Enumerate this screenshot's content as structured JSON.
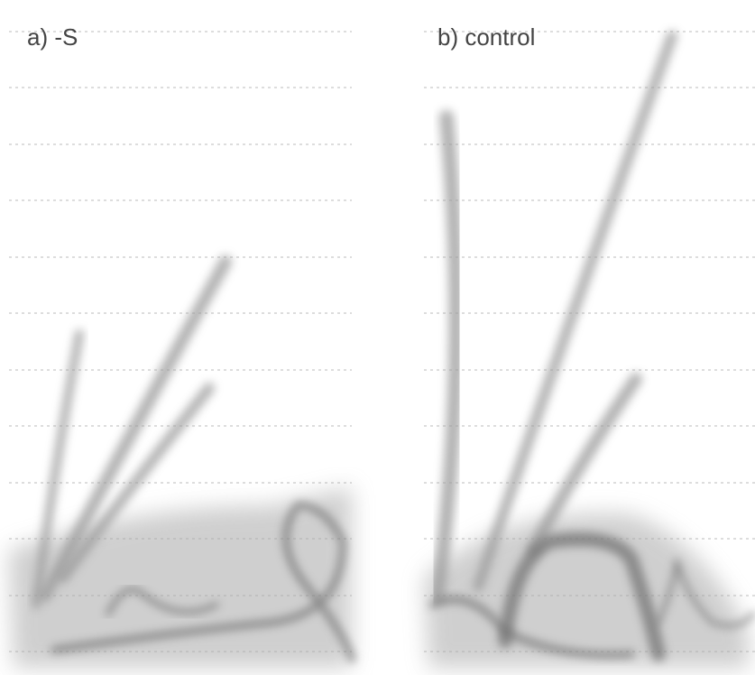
{
  "panels": [
    {
      "label": "a) -S"
    },
    {
      "label": "b) control"
    }
  ]
}
